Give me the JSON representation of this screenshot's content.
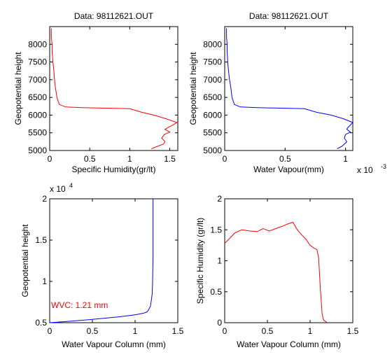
{
  "chart_data": [
    {
      "type": "line",
      "title": "Data: 98112621.OUT",
      "xlabel": "Specific Humidity(gr/lt)",
      "ylabel": "Geopotential height",
      "xlim": [
        0,
        1.6
      ],
      "ylim": [
        5000,
        8500
      ],
      "xticks": [
        0,
        0.5,
        1,
        1.5
      ],
      "xtick_labels": [
        "0",
        "0.5",
        "1",
        "1.5"
      ],
      "yticks": [
        5000,
        5500,
        6000,
        6500,
        7000,
        7500,
        8000
      ],
      "ytick_labels": [
        "5000",
        "5500",
        "6000",
        "6500",
        "7000",
        "7500",
        "8000"
      ],
      "color": "#ff0000",
      "series": [
        {
          "x": [
            1.27,
            1.35,
            1.42,
            1.44,
            1.4,
            1.43,
            1.5,
            1.44,
            1.48,
            1.54,
            1.59,
            1.45,
            1.3,
            1.15,
            1.0,
            0.8,
            0.6,
            0.4,
            0.2,
            0.12,
            0.09,
            0.07,
            0.06,
            0.05,
            0.04,
            0.03,
            0.03,
            0.02,
            0.02,
            0.02
          ],
          "y": [
            5050,
            5120,
            5180,
            5250,
            5350,
            5450,
            5520,
            5600,
            5650,
            5720,
            5790,
            5900,
            6000,
            6080,
            6180,
            6190,
            6200,
            6210,
            6230,
            6300,
            6500,
            6800,
            7000,
            7300,
            7500,
            7800,
            8000,
            8200,
            8350,
            8450
          ]
        }
      ]
    },
    {
      "type": "line",
      "title": "Data: 98112621.OUT",
      "xlabel": "Water Vapour(mm)",
      "ylabel": "Geopotential height",
      "xlim": [
        0,
        0.00106
      ],
      "ylim": [
        5000,
        8500
      ],
      "xticks": [
        0,
        0.0005,
        0.001
      ],
      "xtick_labels": [
        "0",
        "0.5",
        "1"
      ],
      "x_multiplier": "x 10",
      "x_multiplier_exp": "-3",
      "yticks": [
        5000,
        5500,
        6000,
        6500,
        7000,
        7500,
        8000
      ],
      "ytick_labels": [
        "5000",
        "5500",
        "6000",
        "6500",
        "7000",
        "7500",
        "8000"
      ],
      "color": "#0000ff",
      "series": [
        {
          "x": [
            0.00093,
            0.00097,
            0.00099,
            0.00101,
            0.00099,
            0.001,
            0.00104,
            0.00101,
            0.00102,
            0.00104,
            0.00106,
            0.00098,
            0.00088,
            0.00076,
            0.00066,
            0.00053,
            0.0004,
            0.00027,
            0.00013,
            8e-05,
            6e-05,
            5e-05,
            4e-05,
            3e-05,
            2.5e-05,
            2e-05,
            2e-05,
            1.5e-05,
            1.5e-05,
            1.5e-05
          ],
          "y": [
            5050,
            5120,
            5180,
            5250,
            5350,
            5450,
            5520,
            5600,
            5650,
            5720,
            5790,
            5900,
            6000,
            6080,
            6180,
            6190,
            6200,
            6210,
            6230,
            6300,
            6500,
            6800,
            7000,
            7300,
            7500,
            7800,
            8000,
            8200,
            8350,
            8450
          ]
        }
      ]
    },
    {
      "type": "line",
      "title": "",
      "xlabel": "Water Vapour Column (mm)",
      "ylabel": "Geopotential height",
      "xlim": [
        0,
        1.5
      ],
      "ylim": [
        5000,
        20000
      ],
      "xticks": [
        0,
        0.5,
        1,
        1.5
      ],
      "xtick_labels": [
        "0",
        "0.5",
        "1",
        "1.5"
      ],
      "yticks": [
        5000,
        10000,
        15000,
        20000
      ],
      "ytick_labels": [
        "0.5",
        "1",
        "1.5",
        "2"
      ],
      "y_multiplier": "x 10",
      "y_multiplier_exp": "4",
      "color": "#0000ff",
      "annotation": "WVC: 1.21 mm",
      "annotation_color": "#ff0000",
      "series": [
        {
          "x": [
            0.0,
            0.2,
            0.5,
            0.8,
            1.0,
            1.1,
            1.14,
            1.16,
            1.18,
            1.19,
            1.2,
            1.205,
            1.21,
            1.21,
            1.21
          ],
          "y": [
            5000,
            5150,
            5400,
            5700,
            5950,
            6150,
            6300,
            6600,
            7000,
            7700,
            8500,
            10000,
            13000,
            16000,
            20000
          ]
        }
      ]
    },
    {
      "type": "line",
      "title": "",
      "xlabel": "Water Vapour Column (mm)",
      "ylabel": "Specific Humidity (gr/lt)",
      "xlim": [
        0,
        1.5
      ],
      "ylim": [
        0,
        2
      ],
      "xticks": [
        0,
        0.5,
        1,
        1.5
      ],
      "xtick_labels": [
        "0",
        "0.5",
        "1",
        "1.5"
      ],
      "yticks": [
        0,
        0.5,
        1,
        1.5,
        2
      ],
      "ytick_labels": [
        "0",
        "0.5",
        "1",
        "1.5",
        "2"
      ],
      "color": "#ff0000",
      "series": [
        {
          "x": [
            0.0,
            0.05,
            0.12,
            0.2,
            0.3,
            0.38,
            0.45,
            0.52,
            0.6,
            0.68,
            0.75,
            0.8,
            0.85,
            0.9,
            0.95,
            1.0,
            1.05,
            1.08,
            1.1,
            1.11,
            1.12,
            1.13,
            1.14,
            1.15,
            1.16,
            1.18,
            1.2
          ],
          "y": [
            1.28,
            1.35,
            1.45,
            1.5,
            1.48,
            1.47,
            1.52,
            1.48,
            1.52,
            1.56,
            1.6,
            1.62,
            1.5,
            1.42,
            1.35,
            1.25,
            1.2,
            1.18,
            1.05,
            0.8,
            0.55,
            0.35,
            0.15,
            0.08,
            0.04,
            0.02,
            0.0
          ]
        }
      ]
    }
  ]
}
